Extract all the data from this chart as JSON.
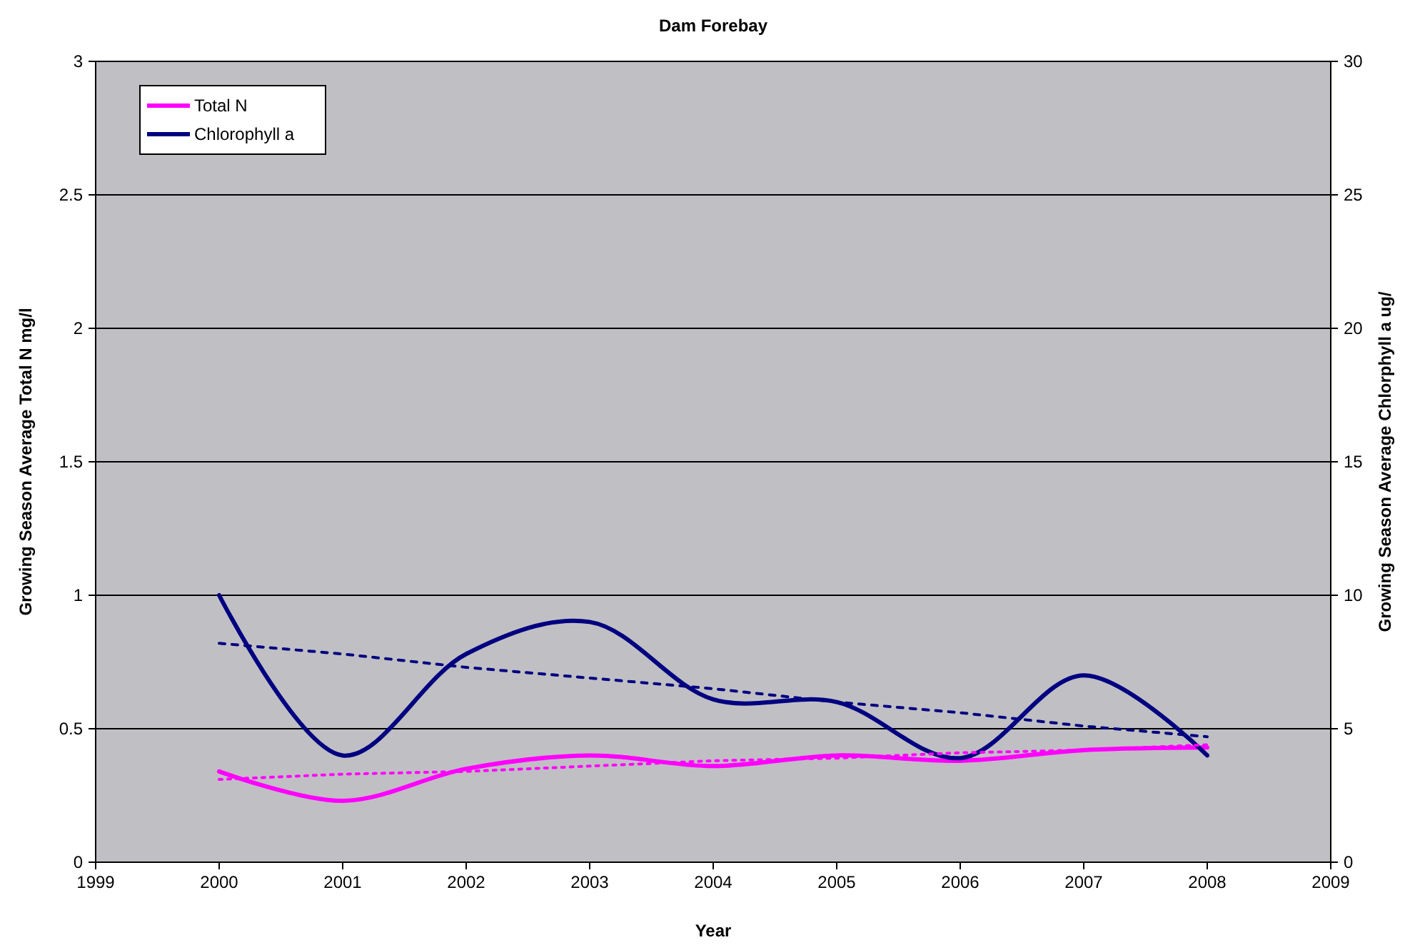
{
  "chart_data": {
    "type": "line",
    "title": "Dam Forebay",
    "xlabel": "Year",
    "ylabel": "Growing Season Average Total N mg/l",
    "y2label": "Growing Season Average Chlorphyll a ug/",
    "x": [
      2000,
      2001,
      2002,
      2003,
      2004,
      2005,
      2006,
      2007,
      2008
    ],
    "series": [
      {
        "name": "Total N",
        "color": "#ff00ff",
        "values": [
          0.34,
          0.23,
          0.35,
          0.4,
          0.36,
          0.4,
          0.38,
          0.42,
          0.43
        ]
      },
      {
        "name": "Chlorophyll a",
        "color": "#000080",
        "axis": "y2",
        "values": [
          10,
          4,
          7.8,
          9,
          6.1,
          6,
          3.9,
          7,
          4
        ]
      },
      {
        "type": "line",
        "color": "#ff00ff",
        "values": [
          0.31,
          0.33,
          0.34,
          0.36,
          0.38,
          0.39,
          0.41,
          0.42,
          0.44
        ],
        "line_style": "dotted"
      },
      {
        "type": "line",
        "color": "#000080",
        "axis": "y2",
        "values": [
          8.2,
          7.8,
          7.3,
          6.9,
          6.5,
          6.0,
          5.6,
          5.1,
          4.7
        ],
        "line_style": "dashed"
      }
    ],
    "xlim": [
      1999,
      2009
    ],
    "xticks": [
      1999,
      2000,
      2001,
      2002,
      2003,
      2004,
      2005,
      2006,
      2007,
      2008,
      2009
    ],
    "ylim": [
      0,
      3
    ],
    "yticks": [
      0,
      0.5,
      1,
      1.5,
      2,
      2.5,
      3
    ],
    "y2lim": [
      0,
      30
    ],
    "y2ticks": [
      0,
      5,
      10,
      15,
      20,
      25,
      30
    ],
    "grid": "y",
    "legend": "top left",
    "marker": "none",
    "line_style": "solid"
  }
}
